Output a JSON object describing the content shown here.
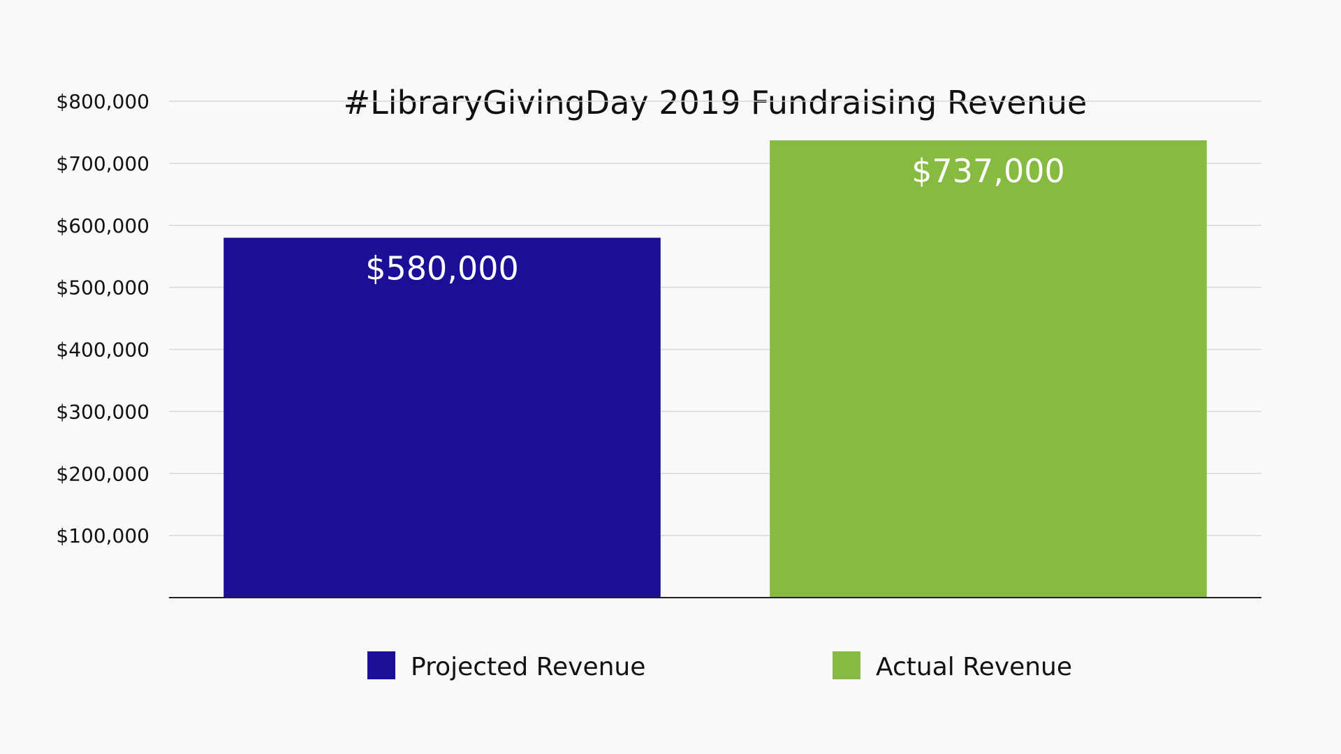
{
  "chart_data": {
    "type": "bar",
    "title": "#LibraryGivingDay 2019 Fundraising Revenue",
    "categories": [
      "Projected Revenue",
      "Actual Revenue"
    ],
    "values": [
      580000,
      737000
    ],
    "value_labels": [
      "$580,000",
      "$737,000"
    ],
    "colors": [
      "#1a0f96",
      "#86ba41"
    ],
    "yticks": [
      100000,
      200000,
      300000,
      400000,
      500000,
      600000,
      700000,
      800000
    ],
    "ytick_labels": [
      "$100,000",
      "$200,000",
      "$300,000",
      "$400,000",
      "$500,000",
      "$600,000",
      "$700,000",
      "$800,000"
    ],
    "ylim": [
      0,
      800000
    ],
    "grid": true,
    "legend": {
      "position": "bottom",
      "entries": [
        "Projected Revenue",
        "Actual Revenue"
      ]
    }
  }
}
